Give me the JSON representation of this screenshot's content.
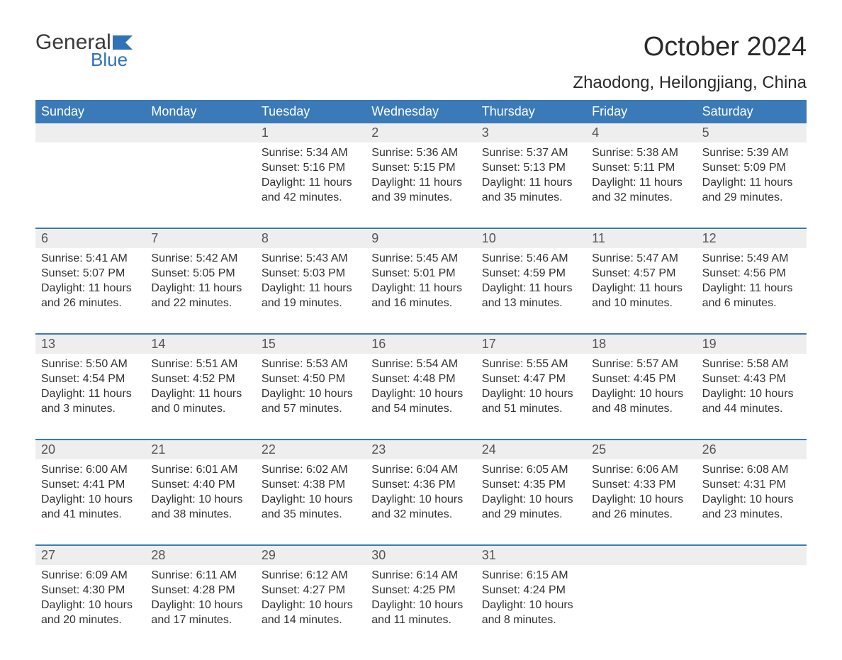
{
  "logo": {
    "general": "General",
    "blue": "Blue",
    "flag_color": "#2f72b5"
  },
  "title": "October 2024",
  "location": "Zhaodong, Heilongjiang, China",
  "colors": {
    "header_bg": "#3a7ab8",
    "header_text": "#ffffff",
    "daynum_bg": "#eeeeee",
    "rule": "#3a7ab8",
    "body_text": "#333333",
    "background": "#ffffff"
  },
  "day_labels": [
    "Sunday",
    "Monday",
    "Tuesday",
    "Wednesday",
    "Thursday",
    "Friday",
    "Saturday"
  ],
  "weeks": [
    [
      {
        "n": "",
        "sunrise": "",
        "sunset": "",
        "daylight": ""
      },
      {
        "n": "",
        "sunrise": "",
        "sunset": "",
        "daylight": ""
      },
      {
        "n": "1",
        "sunrise": "Sunrise: 5:34 AM",
        "sunset": "Sunset: 5:16 PM",
        "daylight": "Daylight: 11 hours and 42 minutes."
      },
      {
        "n": "2",
        "sunrise": "Sunrise: 5:36 AM",
        "sunset": "Sunset: 5:15 PM",
        "daylight": "Daylight: 11 hours and 39 minutes."
      },
      {
        "n": "3",
        "sunrise": "Sunrise: 5:37 AM",
        "sunset": "Sunset: 5:13 PM",
        "daylight": "Daylight: 11 hours and 35 minutes."
      },
      {
        "n": "4",
        "sunrise": "Sunrise: 5:38 AM",
        "sunset": "Sunset: 5:11 PM",
        "daylight": "Daylight: 11 hours and 32 minutes."
      },
      {
        "n": "5",
        "sunrise": "Sunrise: 5:39 AM",
        "sunset": "Sunset: 5:09 PM",
        "daylight": "Daylight: 11 hours and 29 minutes."
      }
    ],
    [
      {
        "n": "6",
        "sunrise": "Sunrise: 5:41 AM",
        "sunset": "Sunset: 5:07 PM",
        "daylight": "Daylight: 11 hours and 26 minutes."
      },
      {
        "n": "7",
        "sunrise": "Sunrise: 5:42 AM",
        "sunset": "Sunset: 5:05 PM",
        "daylight": "Daylight: 11 hours and 22 minutes."
      },
      {
        "n": "8",
        "sunrise": "Sunrise: 5:43 AM",
        "sunset": "Sunset: 5:03 PM",
        "daylight": "Daylight: 11 hours and 19 minutes."
      },
      {
        "n": "9",
        "sunrise": "Sunrise: 5:45 AM",
        "sunset": "Sunset: 5:01 PM",
        "daylight": "Daylight: 11 hours and 16 minutes."
      },
      {
        "n": "10",
        "sunrise": "Sunrise: 5:46 AM",
        "sunset": "Sunset: 4:59 PM",
        "daylight": "Daylight: 11 hours and 13 minutes."
      },
      {
        "n": "11",
        "sunrise": "Sunrise: 5:47 AM",
        "sunset": "Sunset: 4:57 PM",
        "daylight": "Daylight: 11 hours and 10 minutes."
      },
      {
        "n": "12",
        "sunrise": "Sunrise: 5:49 AM",
        "sunset": "Sunset: 4:56 PM",
        "daylight": "Daylight: 11 hours and 6 minutes."
      }
    ],
    [
      {
        "n": "13",
        "sunrise": "Sunrise: 5:50 AM",
        "sunset": "Sunset: 4:54 PM",
        "daylight": "Daylight: 11 hours and 3 minutes."
      },
      {
        "n": "14",
        "sunrise": "Sunrise: 5:51 AM",
        "sunset": "Sunset: 4:52 PM",
        "daylight": "Daylight: 11 hours and 0 minutes."
      },
      {
        "n": "15",
        "sunrise": "Sunrise: 5:53 AM",
        "sunset": "Sunset: 4:50 PM",
        "daylight": "Daylight: 10 hours and 57 minutes."
      },
      {
        "n": "16",
        "sunrise": "Sunrise: 5:54 AM",
        "sunset": "Sunset: 4:48 PM",
        "daylight": "Daylight: 10 hours and 54 minutes."
      },
      {
        "n": "17",
        "sunrise": "Sunrise: 5:55 AM",
        "sunset": "Sunset: 4:47 PM",
        "daylight": "Daylight: 10 hours and 51 minutes."
      },
      {
        "n": "18",
        "sunrise": "Sunrise: 5:57 AM",
        "sunset": "Sunset: 4:45 PM",
        "daylight": "Daylight: 10 hours and 48 minutes."
      },
      {
        "n": "19",
        "sunrise": "Sunrise: 5:58 AM",
        "sunset": "Sunset: 4:43 PM",
        "daylight": "Daylight: 10 hours and 44 minutes."
      }
    ],
    [
      {
        "n": "20",
        "sunrise": "Sunrise: 6:00 AM",
        "sunset": "Sunset: 4:41 PM",
        "daylight": "Daylight: 10 hours and 41 minutes."
      },
      {
        "n": "21",
        "sunrise": "Sunrise: 6:01 AM",
        "sunset": "Sunset: 4:40 PM",
        "daylight": "Daylight: 10 hours and 38 minutes."
      },
      {
        "n": "22",
        "sunrise": "Sunrise: 6:02 AM",
        "sunset": "Sunset: 4:38 PM",
        "daylight": "Daylight: 10 hours and 35 minutes."
      },
      {
        "n": "23",
        "sunrise": "Sunrise: 6:04 AM",
        "sunset": "Sunset: 4:36 PM",
        "daylight": "Daylight: 10 hours and 32 minutes."
      },
      {
        "n": "24",
        "sunrise": "Sunrise: 6:05 AM",
        "sunset": "Sunset: 4:35 PM",
        "daylight": "Daylight: 10 hours and 29 minutes."
      },
      {
        "n": "25",
        "sunrise": "Sunrise: 6:06 AM",
        "sunset": "Sunset: 4:33 PM",
        "daylight": "Daylight: 10 hours and 26 minutes."
      },
      {
        "n": "26",
        "sunrise": "Sunrise: 6:08 AM",
        "sunset": "Sunset: 4:31 PM",
        "daylight": "Daylight: 10 hours and 23 minutes."
      }
    ],
    [
      {
        "n": "27",
        "sunrise": "Sunrise: 6:09 AM",
        "sunset": "Sunset: 4:30 PM",
        "daylight": "Daylight: 10 hours and 20 minutes."
      },
      {
        "n": "28",
        "sunrise": "Sunrise: 6:11 AM",
        "sunset": "Sunset: 4:28 PM",
        "daylight": "Daylight: 10 hours and 17 minutes."
      },
      {
        "n": "29",
        "sunrise": "Sunrise: 6:12 AM",
        "sunset": "Sunset: 4:27 PM",
        "daylight": "Daylight: 10 hours and 14 minutes."
      },
      {
        "n": "30",
        "sunrise": "Sunrise: 6:14 AM",
        "sunset": "Sunset: 4:25 PM",
        "daylight": "Daylight: 10 hours and 11 minutes."
      },
      {
        "n": "31",
        "sunrise": "Sunrise: 6:15 AM",
        "sunset": "Sunset: 4:24 PM",
        "daylight": "Daylight: 10 hours and 8 minutes."
      },
      {
        "n": "",
        "sunrise": "",
        "sunset": "",
        "daylight": ""
      },
      {
        "n": "",
        "sunrise": "",
        "sunset": "",
        "daylight": ""
      }
    ]
  ]
}
